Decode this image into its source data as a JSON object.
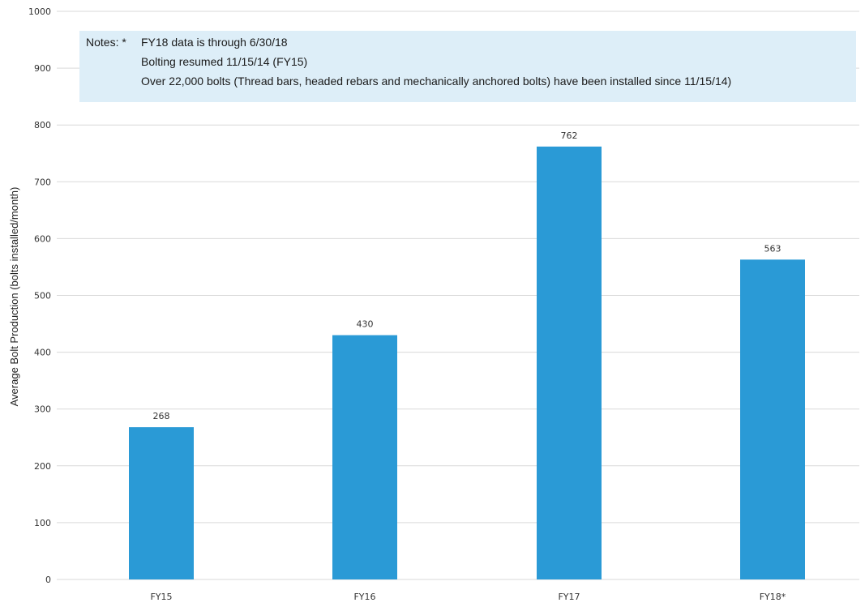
{
  "notes": {
    "prefix": "Notes: *",
    "lines": [
      "FY18 data is through 6/30/18",
      "Bolting resumed 11/15/14 (FY15)",
      "Over 22,000 bolts (Thread bars, headed rebars and mechanically anchored bolts) have been installed since 11/15/14)"
    ]
  },
  "chart_data": {
    "type": "bar",
    "categories": [
      "FY15",
      "FY16",
      "FY17",
      "FY18*"
    ],
    "values": [
      268,
      430,
      762,
      563
    ],
    "data_labels": [
      "268",
      "430",
      "762",
      "563"
    ],
    "title": "",
    "xlabel": "",
    "ylabel": "Average Bolt Production (bolts installed/month)",
    "ylim": [
      0,
      1000
    ],
    "yticks": [
      0,
      100,
      200,
      300,
      400,
      500,
      600,
      700,
      800,
      900,
      1000
    ],
    "grid": true,
    "legend": "none",
    "bar_color": "#2a9ad6",
    "grid_color": "#d9d9d9"
  }
}
